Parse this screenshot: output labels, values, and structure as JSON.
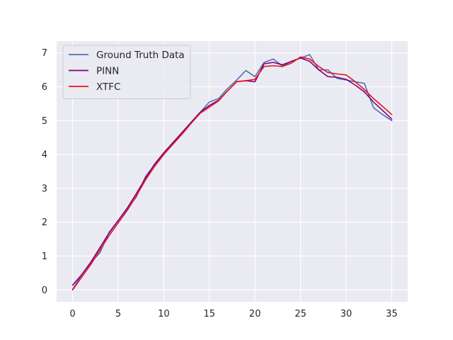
{
  "chart_data": {
    "type": "line",
    "title": "",
    "xlabel": "",
    "ylabel": "",
    "xlim": [
      -1.75,
      36.75
    ],
    "ylim": [
      -0.35,
      7.35
    ],
    "x_ticks": [
      0,
      5,
      10,
      15,
      20,
      25,
      30,
      35
    ],
    "y_ticks": [
      0,
      1,
      2,
      3,
      4,
      5,
      6,
      7
    ],
    "grid": true,
    "legend_position": "upper-left",
    "background_color": "#eaeaf2",
    "grid_color": "#ffffff",
    "x": [
      0,
      1,
      2,
      3,
      4,
      5,
      6,
      7,
      8,
      9,
      10,
      11,
      12,
      13,
      14,
      15,
      16,
      17,
      18,
      19,
      20,
      21,
      22,
      23,
      24,
      25,
      26,
      27,
      28,
      29,
      30,
      31,
      32,
      33,
      34,
      35
    ],
    "series": [
      {
        "name": "Ground Truth Data",
        "color": "#4c72b0",
        "values": [
          0.02,
          0.45,
          0.8,
          1.1,
          1.7,
          2.05,
          2.4,
          2.75,
          3.35,
          3.7,
          4.0,
          4.35,
          4.6,
          4.95,
          5.25,
          5.55,
          5.65,
          5.95,
          6.2,
          6.48,
          6.3,
          6.72,
          6.82,
          6.62,
          6.75,
          6.85,
          6.95,
          6.5,
          6.5,
          6.25,
          6.2,
          6.15,
          6.1,
          5.38,
          5.18,
          5.0
        ]
      },
      {
        "name": "PINN",
        "color": "#800080",
        "values": [
          0.14,
          0.45,
          0.82,
          1.25,
          1.68,
          2.05,
          2.42,
          2.85,
          3.3,
          3.72,
          4.05,
          4.35,
          4.65,
          4.95,
          5.25,
          5.45,
          5.6,
          5.88,
          6.15,
          6.18,
          6.15,
          6.68,
          6.72,
          6.65,
          6.75,
          6.85,
          6.75,
          6.5,
          6.3,
          6.28,
          6.22,
          6.05,
          5.85,
          5.55,
          5.3,
          5.05
        ]
      },
      {
        "name": "XTFC",
        "color": "#e8121e",
        "values": [
          0.0,
          0.38,
          0.75,
          1.18,
          1.6,
          1.98,
          2.35,
          2.78,
          3.25,
          3.65,
          4.0,
          4.3,
          4.6,
          4.92,
          5.22,
          5.4,
          5.58,
          5.88,
          6.15,
          6.18,
          6.22,
          6.6,
          6.62,
          6.6,
          6.7,
          6.88,
          6.82,
          6.6,
          6.42,
          6.38,
          6.35,
          6.15,
          5.92,
          5.65,
          5.42,
          5.18
        ]
      }
    ]
  }
}
